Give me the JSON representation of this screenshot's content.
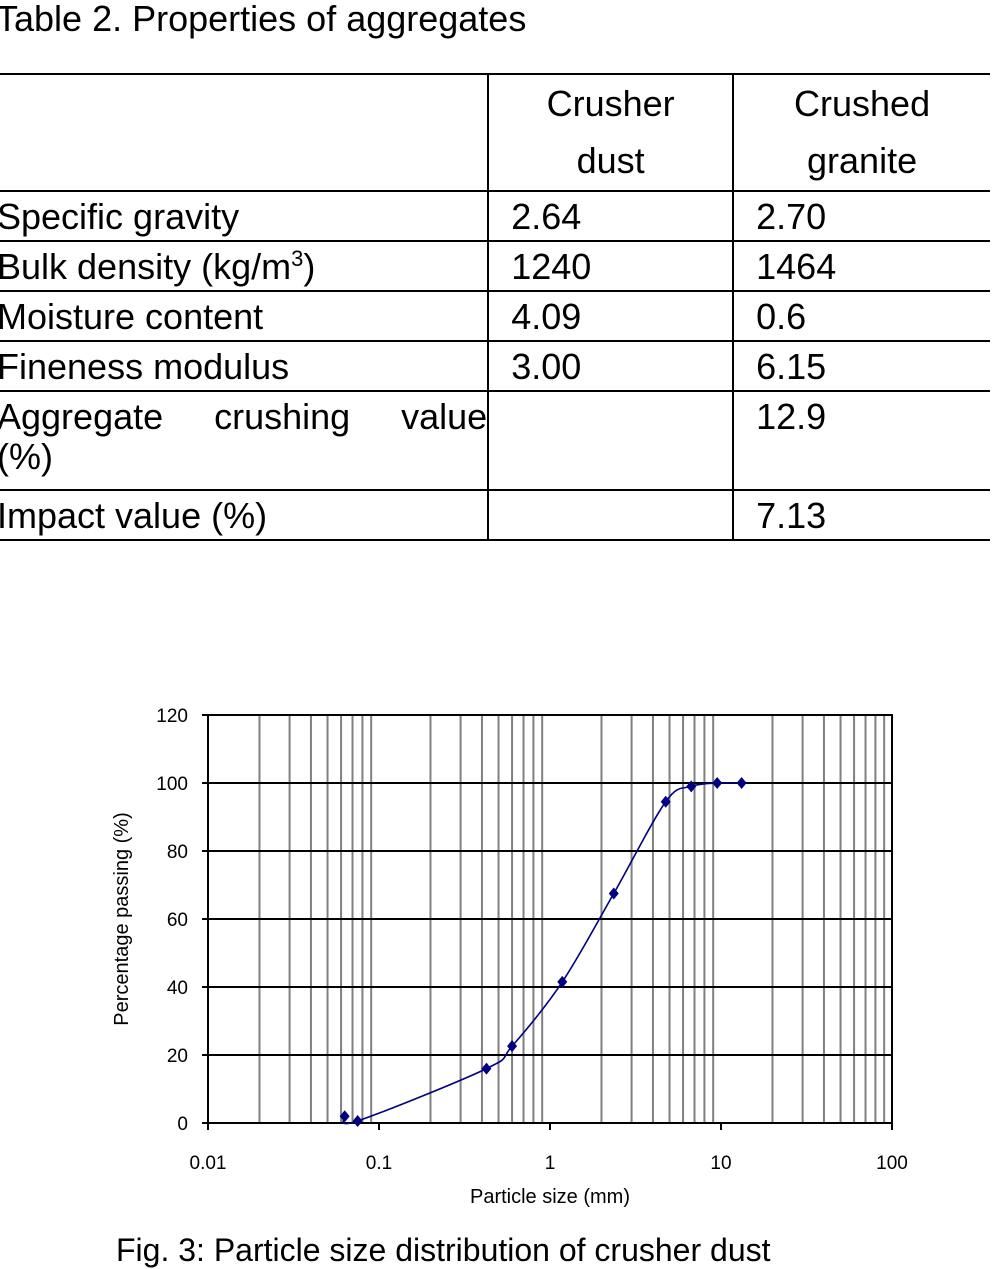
{
  "table": {
    "title": "Table 2. Properties of aggregates",
    "headers": [
      "",
      "Crusher dust",
      "Crushed granite"
    ],
    "header_lines": [
      [
        "Crusher",
        "dust"
      ],
      [
        "Crushed",
        "granite"
      ]
    ],
    "rows": [
      {
        "label": "Specific gravity",
        "crusher_dust": "2.64",
        "crushed_granite": "2.70"
      },
      {
        "label": "Bulk density (kg/m",
        "label_sup": "3",
        "label_after": ")",
        "crusher_dust": "1240",
        "crushed_granite": "1464"
      },
      {
        "label": "Moisture content",
        "crusher_dust": "4.09",
        "crushed_granite": "0.6"
      },
      {
        "label": "Fineness modulus",
        "crusher_dust": "3.00",
        "crushed_granite": "6.15"
      },
      {
        "label": "Aggregate crushing value (%)",
        "crusher_dust": "",
        "crushed_granite": "12.9"
      },
      {
        "label": "Impact value (%)",
        "crusher_dust": "",
        "crushed_granite": "7.13"
      }
    ]
  },
  "chart_data": {
    "type": "scatter",
    "xlabel": "Particle size (mm)",
    "ylabel": "Percentage passing (%)",
    "x_scale": "log",
    "xlim": [
      0.01,
      100
    ],
    "ylim": [
      0,
      120
    ],
    "x_ticks": [
      "0.01",
      "0.1",
      "1",
      "10",
      "100"
    ],
    "y_ticks": [
      "0",
      "20",
      "40",
      "60",
      "80",
      "100",
      "120"
    ],
    "grid": true,
    "line": "smoothed",
    "marker": "diamond",
    "color": "#000080",
    "x": [
      0.063,
      0.075,
      0.425,
      0.6,
      1.18,
      2.36,
      4.75,
      6.7,
      9.5,
      13.2
    ],
    "y": [
      2,
      0.6,
      16,
      22.6,
      41.5,
      67.5,
      94.5,
      99,
      100,
      100
    ]
  },
  "caption": "Fig. 3: Particle size distribution of crusher dust"
}
